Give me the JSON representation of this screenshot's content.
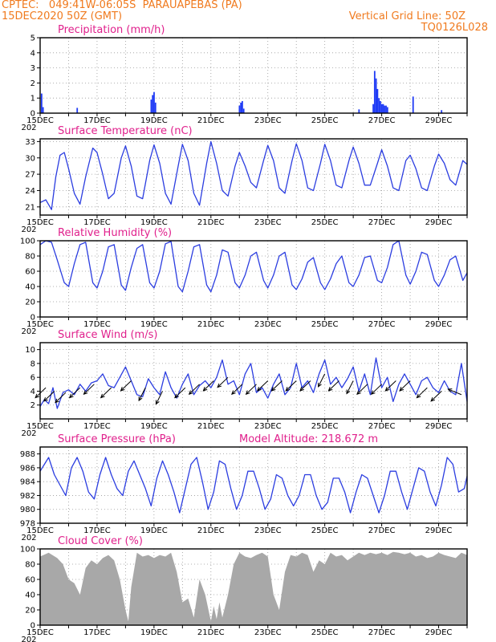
{
  "header": {
    "line1": "CPTEC:   049:41W-06:05S  PARAUAPEBAS (PA)",
    "line2": "15DEC2020 50Z (GMT)",
    "grid_note": "Vertical Grid Line: 50Z",
    "code": "TQ0126L028"
  },
  "colors": {
    "header": "#f07a1e",
    "title": "#e0208c",
    "series": "#2b3de0",
    "bar": "#1f3bf5",
    "cloud": "#a8a8a8",
    "grid": "#999999"
  },
  "x_axis": {
    "tick_labels": [
      "15DEC",
      "17DEC",
      "19DEC",
      "21DEC",
      "23DEC",
      "25DEC",
      "27DEC",
      "29DEC"
    ],
    "year_label": "202",
    "start_day": 15,
    "days": 15
  },
  "chart_data": [
    {
      "id": "precip",
      "type": "bar",
      "title": "Precipitation (mm/h)",
      "ylim": [
        0,
        5
      ],
      "yticks": [
        "0",
        "1",
        "2",
        "3",
        "4",
        "5"
      ],
      "x_unit": "day of December (GMT)",
      "x": [
        15.05,
        15.1,
        16.3,
        18.9,
        18.95,
        19.0,
        19.05,
        22.0,
        22.05,
        22.1,
        22.15,
        26.2,
        26.7,
        26.75,
        26.8,
        26.85,
        26.9,
        26.95,
        27.0,
        27.05,
        27.1,
        27.15,
        27.2,
        28.1,
        29.1
      ],
      "values": [
        1.3,
        0.4,
        0.35,
        0.9,
        1.2,
        1.4,
        0.7,
        0.5,
        0.7,
        0.8,
        0.3,
        0.25,
        0.6,
        2.8,
        2.3,
        1.6,
        1.0,
        0.8,
        0.6,
        0.6,
        0.5,
        0.5,
        0.4,
        1.1,
        0.2
      ]
    },
    {
      "id": "temp",
      "type": "line",
      "title": "Surface Temperature (nC)",
      "ylim": [
        19.5,
        33.5
      ],
      "yticks": [
        "21",
        "24",
        "27",
        "30",
        "33"
      ],
      "x_unit": "day of December (GMT)",
      "x": [
        15.0,
        15.2,
        15.4,
        15.55,
        15.7,
        15.85,
        16.0,
        16.2,
        16.4,
        16.6,
        16.85,
        17.0,
        17.2,
        17.4,
        17.6,
        17.85,
        18.0,
        18.2,
        18.4,
        18.6,
        18.85,
        19.0,
        19.2,
        19.4,
        19.6,
        19.85,
        20.0,
        20.2,
        20.4,
        20.6,
        20.85,
        21.0,
        21.2,
        21.4,
        21.6,
        21.85,
        22.0,
        22.2,
        22.4,
        22.6,
        22.85,
        23.0,
        23.2,
        23.4,
        23.6,
        23.85,
        24.0,
        24.2,
        24.4,
        24.6,
        24.85,
        25.0,
        25.2,
        25.4,
        25.6,
        25.85,
        26.0,
        26.2,
        26.4,
        26.6,
        26.85,
        27.0,
        27.2,
        27.4,
        27.6,
        27.85,
        28.0,
        28.2,
        28.4,
        28.6,
        28.85,
        29.0,
        29.2,
        29.4,
        29.6,
        29.85,
        30.0
      ],
      "values": [
        21.8,
        22.3,
        20.5,
        26.5,
        30.5,
        31.0,
        28.0,
        23.5,
        21.5,
        26.5,
        31.8,
        31.0,
        27.0,
        22.5,
        23.5,
        30.0,
        32.2,
        28.5,
        23.0,
        22.5,
        29.5,
        32.4,
        29.0,
        23.5,
        21.5,
        28.5,
        32.5,
        29.5,
        23.5,
        21.3,
        29.0,
        33.0,
        29.0,
        24.0,
        23.0,
        28.5,
        31.0,
        28.5,
        25.5,
        24.5,
        29.5,
        32.3,
        29.5,
        24.5,
        23.5,
        29.5,
        32.6,
        29.5,
        24.5,
        24.0,
        29.0,
        32.5,
        29.5,
        25.0,
        24.5,
        29.5,
        32.0,
        29.0,
        25.0,
        25.0,
        29.0,
        31.5,
        28.5,
        24.5,
        24.0,
        29.5,
        30.5,
        28.0,
        24.5,
        24.0,
        28.5,
        30.7,
        29.0,
        26.0,
        25.0,
        29.5,
        28.8
      ]
    },
    {
      "id": "rh",
      "type": "line",
      "title": "Relative Humidity (%)",
      "ylim": [
        0,
        100
      ],
      "yticks": [
        "0",
        "20",
        "40",
        "60",
        "80",
        "100"
      ],
      "x_unit": "day of December (GMT)",
      "x": [
        15.0,
        15.2,
        15.4,
        15.6,
        15.85,
        16.0,
        16.2,
        16.4,
        16.6,
        16.85,
        17.0,
        17.2,
        17.4,
        17.6,
        17.85,
        18.0,
        18.2,
        18.4,
        18.6,
        18.85,
        19.0,
        19.2,
        19.4,
        19.6,
        19.85,
        20.0,
        20.2,
        20.4,
        20.6,
        20.85,
        21.0,
        21.2,
        21.4,
        21.6,
        21.85,
        22.0,
        22.2,
        22.4,
        22.6,
        22.85,
        23.0,
        23.2,
        23.4,
        23.6,
        23.85,
        24.0,
        24.2,
        24.4,
        24.6,
        24.85,
        25.0,
        25.2,
        25.4,
        25.6,
        25.85,
        26.0,
        26.2,
        26.4,
        26.6,
        26.85,
        27.0,
        27.2,
        27.4,
        27.6,
        27.85,
        28.0,
        28.2,
        28.4,
        28.6,
        28.85,
        29.0,
        29.2,
        29.4,
        29.6,
        29.85,
        30.0
      ],
      "values": [
        95,
        100,
        98,
        75,
        45,
        40,
        70,
        95,
        98,
        45,
        38,
        60,
        92,
        95,
        42,
        35,
        65,
        90,
        95,
        45,
        38,
        60,
        96,
        99,
        40,
        33,
        60,
        92,
        95,
        42,
        33,
        55,
        88,
        85,
        45,
        38,
        55,
        80,
        85,
        48,
        38,
        55,
        80,
        85,
        42,
        36,
        50,
        72,
        78,
        45,
        36,
        50,
        70,
        80,
        45,
        40,
        55,
        78,
        80,
        48,
        45,
        65,
        95,
        100,
        55,
        43,
        60,
        85,
        82,
        48,
        40,
        55,
        75,
        80,
        48,
        58
      ]
    },
    {
      "id": "wind",
      "type": "line",
      "title": "Surface Wind (m/s)",
      "ylim": [
        0,
        11
      ],
      "yticks": [
        "2",
        "4",
        "6",
        "8",
        "10"
      ],
      "x_unit": "day of December (GMT)",
      "x": [
        15.0,
        15.15,
        15.3,
        15.45,
        15.6,
        15.8,
        16.0,
        16.2,
        16.4,
        16.6,
        16.8,
        17.0,
        17.2,
        17.4,
        17.6,
        17.8,
        18.0,
        18.2,
        18.4,
        18.6,
        18.8,
        19.0,
        19.2,
        19.4,
        19.6,
        19.8,
        20.0,
        20.2,
        20.4,
        20.6,
        20.8,
        21.0,
        21.2,
        21.4,
        21.6,
        21.8,
        22.0,
        22.2,
        22.4,
        22.6,
        22.8,
        23.0,
        23.2,
        23.4,
        23.6,
        23.8,
        24.0,
        24.2,
        24.4,
        24.6,
        24.8,
        25.0,
        25.2,
        25.4,
        25.6,
        25.8,
        26.0,
        26.2,
        26.4,
        26.6,
        26.8,
        27.0,
        27.2,
        27.4,
        27.6,
        27.8,
        28.0,
        28.2,
        28.4,
        28.6,
        28.8,
        29.0,
        29.2,
        29.4,
        29.6,
        29.8,
        30.0
      ],
      "values": [
        1.8,
        2.8,
        2.2,
        4.5,
        1.5,
        3.8,
        4.2,
        3.5,
        5.0,
        4.0,
        5.2,
        5.5,
        6.5,
        4.8,
        4.5,
        6.0,
        7.5,
        5.5,
        3.5,
        3.2,
        5.8,
        4.5,
        3.5,
        6.8,
        4.5,
        3.0,
        5.0,
        6.5,
        3.5,
        4.8,
        5.5,
        4.5,
        6.0,
        8.5,
        5.0,
        5.5,
        3.5,
        6.5,
        8.0,
        3.8,
        4.5,
        3.0,
        5.0,
        6.5,
        3.5,
        4.5,
        8.0,
        4.5,
        5.5,
        3.8,
        6.5,
        8.5,
        5.0,
        6.0,
        4.5,
        5.8,
        7.5,
        4.0,
        6.5,
        3.5,
        8.8,
        4.5,
        6.0,
        2.5,
        5.0,
        6.5,
        5.0,
        3.5,
        5.5,
        6.0,
        4.5,
        3.8,
        5.5,
        4.0,
        3.5,
        8.0,
        2.5
      ],
      "arrows": [
        {
          "x": 15.2,
          "speed": 4.5,
          "dir": "SW"
        },
        {
          "x": 15.5,
          "speed": 4.0,
          "dir": "SW"
        },
        {
          "x": 15.9,
          "speed": 3.8,
          "dir": "SW"
        },
        {
          "x": 16.4,
          "speed": 4.5,
          "dir": "SW"
        },
        {
          "x": 16.9,
          "speed": 5.0,
          "dir": "SW"
        },
        {
          "x": 17.5,
          "speed": 4.5,
          "dir": "SW"
        },
        {
          "x": 18.2,
          "speed": 5.5,
          "dir": "SW"
        },
        {
          "x": 18.7,
          "speed": 4.5,
          "dir": "SSW"
        },
        {
          "x": 19.3,
          "speed": 4.0,
          "dir": "SSW"
        },
        {
          "x": 20.1,
          "speed": 4.5,
          "dir": "SW"
        },
        {
          "x": 20.6,
          "speed": 5.0,
          "dir": "SW"
        },
        {
          "x": 21.1,
          "speed": 5.5,
          "dir": "SW"
        },
        {
          "x": 21.6,
          "speed": 6.0,
          "dir": "SW"
        },
        {
          "x": 22.1,
          "speed": 5.0,
          "dir": "SW"
        },
        {
          "x": 22.6,
          "speed": 5.0,
          "dir": "SW"
        },
        {
          "x": 23.0,
          "speed": 5.5,
          "dir": "SW"
        },
        {
          "x": 23.5,
          "speed": 5.5,
          "dir": "SW"
        },
        {
          "x": 24.0,
          "speed": 5.5,
          "dir": "SW"
        },
        {
          "x": 24.5,
          "speed": 5.5,
          "dir": "SW"
        },
        {
          "x": 25.0,
          "speed": 6.5,
          "dir": "SSW"
        },
        {
          "x": 25.5,
          "speed": 5.5,
          "dir": "SW"
        },
        {
          "x": 26.0,
          "speed": 5.5,
          "dir": "SSW"
        },
        {
          "x": 26.5,
          "speed": 5.0,
          "dir": "SW"
        },
        {
          "x": 27.0,
          "speed": 5.0,
          "dir": "SW"
        },
        {
          "x": 27.5,
          "speed": 5.5,
          "dir": "SW"
        },
        {
          "x": 28.0,
          "speed": 5.5,
          "dir": "SW"
        },
        {
          "x": 28.6,
          "speed": 4.5,
          "dir": "SW"
        },
        {
          "x": 29.1,
          "speed": 4.0,
          "dir": "SW"
        },
        {
          "x": 29.8,
          "speed": 3.5,
          "dir": "WNW"
        }
      ]
    },
    {
      "id": "pressure",
      "type": "line",
      "title": "Surface Pressure (hPa)",
      "annotation": "Model Altitude: 218.672 m",
      "ylim": [
        978,
        989
      ],
      "yticks": [
        "978",
        "980",
        "982",
        "984",
        "986",
        "988"
      ],
      "x_unit": "day of December (GMT)",
      "x": [
        15.0,
        15.15,
        15.3,
        15.5,
        15.7,
        15.9,
        16.1,
        16.3,
        16.5,
        16.7,
        16.9,
        17.1,
        17.3,
        17.5,
        17.7,
        17.9,
        18.1,
        18.3,
        18.5,
        18.7,
        18.9,
        19.1,
        19.3,
        19.5,
        19.7,
        19.9,
        20.1,
        20.3,
        20.5,
        20.7,
        20.9,
        21.1,
        21.3,
        21.5,
        21.7,
        21.9,
        22.1,
        22.3,
        22.5,
        22.7,
        22.9,
        23.1,
        23.3,
        23.5,
        23.7,
        23.9,
        24.1,
        24.3,
        24.5,
        24.7,
        24.9,
        25.1,
        25.3,
        25.5,
        25.7,
        25.9,
        26.1,
        26.3,
        26.5,
        26.7,
        26.9,
        27.1,
        27.3,
        27.5,
        27.7,
        27.9,
        28.1,
        28.3,
        28.5,
        28.7,
        28.9,
        29.1,
        29.3,
        29.5,
        29.7,
        29.9,
        30.0
      ],
      "values": [
        985.5,
        986.5,
        987.5,
        985.0,
        983.5,
        982.0,
        986.0,
        987.5,
        985.5,
        982.5,
        981.5,
        985.0,
        987.5,
        985.0,
        983.0,
        982.0,
        985.5,
        987.0,
        985.0,
        983.0,
        980.5,
        984.5,
        987.0,
        985.0,
        982.5,
        979.5,
        983.0,
        986.5,
        987.5,
        984.0,
        980.0,
        982.5,
        987.0,
        986.5,
        983.0,
        980.0,
        982.0,
        985.5,
        985.5,
        983.0,
        980.0,
        981.5,
        985.0,
        984.5,
        982.0,
        980.5,
        982.0,
        985.0,
        985.0,
        982.0,
        980.0,
        981.0,
        984.5,
        984.5,
        982.5,
        979.5,
        982.5,
        985.0,
        984.5,
        982.0,
        979.5,
        982.0,
        985.5,
        985.5,
        982.5,
        980.0,
        983.0,
        986.0,
        985.5,
        982.5,
        980.5,
        983.5,
        987.5,
        986.5,
        982.5,
        983.0,
        984.8
      ]
    },
    {
      "id": "cloud",
      "type": "area",
      "title": "Cloud Cover (%)",
      "ylim": [
        0,
        100
      ],
      "yticks": [
        "0",
        "20",
        "40",
        "60",
        "80",
        "100"
      ],
      "x_unit": "day of December (GMT)",
      "x": [
        15.0,
        15.3,
        15.6,
        15.8,
        16.0,
        16.2,
        16.4,
        16.6,
        16.8,
        17.0,
        17.2,
        17.4,
        17.6,
        17.8,
        18.0,
        18.1,
        18.2,
        18.4,
        18.6,
        18.8,
        19.0,
        19.2,
        19.4,
        19.6,
        19.8,
        20.0,
        20.2,
        20.4,
        20.6,
        20.8,
        21.0,
        21.1,
        21.2,
        21.3,
        21.4,
        21.6,
        21.8,
        22.0,
        22.2,
        22.4,
        22.6,
        22.8,
        23.0,
        23.2,
        23.4,
        23.6,
        23.8,
        24.0,
        24.2,
        24.4,
        24.6,
        24.8,
        25.0,
        25.2,
        25.4,
        25.6,
        25.8,
        26.0,
        26.2,
        26.4,
        26.6,
        26.8,
        27.0,
        27.2,
        27.4,
        27.6,
        27.8,
        28.0,
        28.2,
        28.4,
        28.6,
        28.8,
        29.0,
        29.2,
        29.4,
        29.6,
        29.8,
        30.0
      ],
      "values": [
        90,
        95,
        88,
        80,
        60,
        55,
        40,
        75,
        85,
        80,
        88,
        92,
        85,
        60,
        20,
        5,
        50,
        95,
        90,
        92,
        88,
        92,
        90,
        95,
        70,
        30,
        35,
        10,
        60,
        40,
        5,
        25,
        8,
        30,
        10,
        40,
        80,
        95,
        90,
        88,
        92,
        95,
        90,
        40,
        20,
        70,
        92,
        90,
        95,
        92,
        70,
        85,
        80,
        95,
        90,
        92,
        85,
        90,
        95,
        92,
        95,
        93,
        95,
        92,
        96,
        95,
        93,
        95,
        90,
        92,
        88,
        90,
        95,
        92,
        90,
        88,
        95,
        92
      ]
    }
  ]
}
